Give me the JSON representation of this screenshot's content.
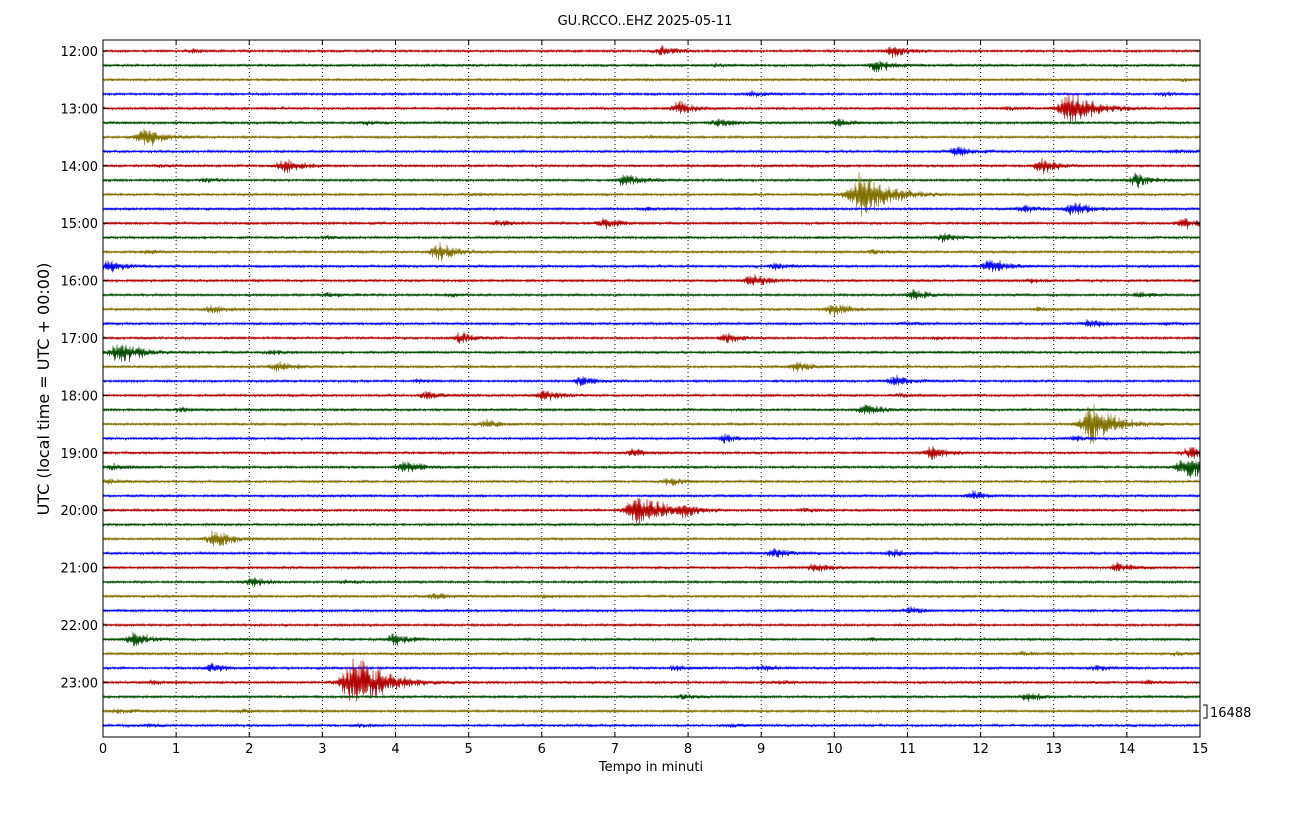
{
  "chart_data": {
    "type": "line",
    "title": "GU.RCCO..EHZ 2025-05-11",
    "xlabel": "Tempo in minuti",
    "ylabel": "UTC (local time = UTC + 00:00)",
    "xlim": [
      0,
      15
    ],
    "x_ticks": [
      "0",
      "1",
      "2",
      "3",
      "4",
      "5",
      "6",
      "7",
      "8",
      "9",
      "10",
      "11",
      "12",
      "13",
      "14",
      "15"
    ],
    "y_ticks": [
      "12:00",
      "13:00",
      "14:00",
      "15:00",
      "16:00",
      "17:00",
      "18:00",
      "19:00",
      "20:00",
      "21:00",
      "22:00",
      "23:00"
    ],
    "trace_interval_minutes": 15,
    "first_trace_utc": "12:00",
    "trace_count": 48,
    "color_cycle": [
      "#b30000",
      "#004d00",
      "#807000",
      "#0000ff"
    ],
    "grid": "vertical dotted at each minute",
    "scale_label": "16488",
    "events": [
      {
        "trace": 0,
        "minute": 7.65,
        "amp": 0.35
      },
      {
        "trace": 0,
        "minute": 10.8,
        "amp": 0.4
      },
      {
        "trace": 0,
        "minute": 1.25,
        "amp": 0.12
      },
      {
        "trace": 1,
        "minute": 10.6,
        "amp": 0.45
      },
      {
        "trace": 1,
        "minute": 8.4,
        "amp": 0.1
      },
      {
        "trace": 2,
        "minute": 14.8,
        "amp": 0.1
      },
      {
        "trace": 3,
        "minute": 8.9,
        "amp": 0.2
      },
      {
        "trace": 3,
        "minute": 14.5,
        "amp": 0.12
      },
      {
        "trace": 4,
        "minute": 7.9,
        "amp": 0.45
      },
      {
        "trace": 4,
        "minute": 13.25,
        "amp": 1.2
      },
      {
        "trace": 4,
        "minute": 12.4,
        "amp": 0.12
      },
      {
        "trace": 5,
        "minute": 8.45,
        "amp": 0.35
      },
      {
        "trace": 5,
        "minute": 10.05,
        "amp": 0.3
      },
      {
        "trace": 5,
        "minute": 3.6,
        "amp": 0.15
      },
      {
        "trace": 6,
        "minute": 0.6,
        "amp": 0.7
      },
      {
        "trace": 6,
        "minute": 7.5,
        "amp": 0.1
      },
      {
        "trace": 7,
        "minute": 11.7,
        "amp": 0.4
      },
      {
        "trace": 7,
        "minute": 14.7,
        "amp": 0.12
      },
      {
        "trace": 8,
        "minute": 2.5,
        "amp": 0.5
      },
      {
        "trace": 8,
        "minute": 12.85,
        "amp": 0.5
      },
      {
        "trace": 8,
        "minute": 0.8,
        "amp": 0.08
      },
      {
        "trace": 9,
        "minute": 7.15,
        "amp": 0.45
      },
      {
        "trace": 9,
        "minute": 14.15,
        "amp": 0.45
      },
      {
        "trace": 9,
        "minute": 1.4,
        "amp": 0.15
      },
      {
        "trace": 10,
        "minute": 10.4,
        "amp": 1.55
      },
      {
        "trace": 10,
        "minute": 5.1,
        "amp": 0.1
      },
      {
        "trace": 11,
        "minute": 12.6,
        "amp": 0.3
      },
      {
        "trace": 11,
        "minute": 13.3,
        "amp": 0.5
      },
      {
        "trace": 11,
        "minute": 7.4,
        "amp": 0.12
      },
      {
        "trace": 12,
        "minute": 5.45,
        "amp": 0.25
      },
      {
        "trace": 12,
        "minute": 6.9,
        "amp": 0.4
      },
      {
        "trace": 12,
        "minute": 14.8,
        "amp": 0.4
      },
      {
        "trace": 13,
        "minute": 11.5,
        "amp": 0.3
      },
      {
        "trace": 13,
        "minute": 3.1,
        "amp": 0.12
      },
      {
        "trace": 14,
        "minute": 4.6,
        "amp": 0.65
      },
      {
        "trace": 14,
        "minute": 0.65,
        "amp": 0.15
      },
      {
        "trace": 14,
        "minute": 10.55,
        "amp": 0.15
      },
      {
        "trace": 15,
        "minute": 0.1,
        "amp": 0.45
      },
      {
        "trace": 15,
        "minute": 9.2,
        "amp": 0.25
      },
      {
        "trace": 15,
        "minute": 12.15,
        "amp": 0.55
      },
      {
        "trace": 16,
        "minute": 8.9,
        "amp": 0.45
      },
      {
        "trace": 16,
        "minute": 12.7,
        "amp": 0.15
      },
      {
        "trace": 17,
        "minute": 11.1,
        "amp": 0.35
      },
      {
        "trace": 17,
        "minute": 14.2,
        "amp": 0.25
      },
      {
        "trace": 17,
        "minute": 3.1,
        "amp": 0.15
      },
      {
        "trace": 17,
        "minute": 4.8,
        "amp": 0.12
      },
      {
        "trace": 18,
        "minute": 1.5,
        "amp": 0.3
      },
      {
        "trace": 18,
        "minute": 10.0,
        "amp": 0.45
      },
      {
        "trace": 18,
        "minute": 12.8,
        "amp": 0.15
      },
      {
        "trace": 19,
        "minute": 13.5,
        "amp": 0.3
      },
      {
        "trace": 19,
        "minute": 11.0,
        "amp": 0.12
      },
      {
        "trace": 19,
        "minute": 14.55,
        "amp": 0.12
      },
      {
        "trace": 20,
        "minute": 4.9,
        "amp": 0.4
      },
      {
        "trace": 20,
        "minute": 8.55,
        "amp": 0.35
      },
      {
        "trace": 20,
        "minute": 11.4,
        "amp": 0.1
      },
      {
        "trace": 21,
        "minute": 0.25,
        "amp": 0.85
      },
      {
        "trace": 21,
        "minute": 2.3,
        "amp": 0.2
      },
      {
        "trace": 22,
        "minute": 2.4,
        "amp": 0.35
      },
      {
        "trace": 22,
        "minute": 9.5,
        "amp": 0.35
      },
      {
        "trace": 23,
        "minute": 6.55,
        "amp": 0.35
      },
      {
        "trace": 23,
        "minute": 10.85,
        "amp": 0.4
      },
      {
        "trace": 23,
        "minute": 4.3,
        "amp": 0.12
      },
      {
        "trace": 24,
        "minute": 4.45,
        "amp": 0.3
      },
      {
        "trace": 24,
        "minute": 6.05,
        "amp": 0.4
      },
      {
        "trace": 24,
        "minute": 10.9,
        "amp": 0.15
      },
      {
        "trace": 25,
        "minute": 10.45,
        "amp": 0.4
      },
      {
        "trace": 25,
        "minute": 1.1,
        "amp": 0.15
      },
      {
        "trace": 26,
        "minute": 5.25,
        "amp": 0.3
      },
      {
        "trace": 26,
        "minute": 13.55,
        "amp": 1.25
      },
      {
        "trace": 27,
        "minute": 8.5,
        "amp": 0.3
      },
      {
        "trace": 27,
        "minute": 13.3,
        "amp": 0.2
      },
      {
        "trace": 28,
        "minute": 7.25,
        "amp": 0.3
      },
      {
        "trace": 28,
        "minute": 11.35,
        "amp": 0.45
      },
      {
        "trace": 28,
        "minute": 14.9,
        "amp": 0.5
      },
      {
        "trace": 29,
        "minute": 4.15,
        "amp": 0.45
      },
      {
        "trace": 29,
        "minute": 14.85,
        "amp": 0.9
      },
      {
        "trace": 29,
        "minute": 0.15,
        "amp": 0.2
      },
      {
        "trace": 30,
        "minute": 7.75,
        "amp": 0.3
      },
      {
        "trace": 30,
        "minute": 0.1,
        "amp": 0.15
      },
      {
        "trace": 31,
        "minute": 11.9,
        "amp": 0.3
      },
      {
        "trace": 32,
        "minute": 7.35,
        "amp": 1.2
      },
      {
        "trace": 32,
        "minute": 7.95,
        "amp": 0.35
      },
      {
        "trace": 32,
        "minute": 9.6,
        "amp": 0.15
      },
      {
        "trace": 34,
        "minute": 1.55,
        "amp": 0.6
      },
      {
        "trace": 35,
        "minute": 9.2,
        "amp": 0.35
      },
      {
        "trace": 35,
        "minute": 10.8,
        "amp": 0.25
      },
      {
        "trace": 36,
        "minute": 9.75,
        "amp": 0.35
      },
      {
        "trace": 36,
        "minute": 13.9,
        "amp": 0.35
      },
      {
        "trace": 37,
        "minute": 2.05,
        "amp": 0.35
      },
      {
        "trace": 37,
        "minute": 3.3,
        "amp": 0.1
      },
      {
        "trace": 38,
        "minute": 4.55,
        "amp": 0.25
      },
      {
        "trace": 38,
        "minute": 6.05,
        "amp": 0.12
      },
      {
        "trace": 39,
        "minute": 11.05,
        "amp": 0.25
      },
      {
        "trace": 41,
        "minute": 0.45,
        "amp": 0.5
      },
      {
        "trace": 41,
        "minute": 4.0,
        "amp": 0.4
      },
      {
        "trace": 41,
        "minute": 10.5,
        "amp": 0.12
      },
      {
        "trace": 42,
        "minute": 12.6,
        "amp": 0.15
      },
      {
        "trace": 42,
        "minute": 14.7,
        "amp": 0.15
      },
      {
        "trace": 43,
        "minute": 1.5,
        "amp": 0.3
      },
      {
        "trace": 43,
        "minute": 7.85,
        "amp": 0.2
      },
      {
        "trace": 43,
        "minute": 9.05,
        "amp": 0.2
      },
      {
        "trace": 43,
        "minute": 13.6,
        "amp": 0.15
      },
      {
        "trace": 44,
        "minute": 3.5,
        "amp": 1.75
      },
      {
        "trace": 44,
        "minute": 0.7,
        "amp": 0.15
      },
      {
        "trace": 44,
        "minute": 9.3,
        "amp": 0.15
      },
      {
        "trace": 44,
        "minute": 14.3,
        "amp": 0.15
      },
      {
        "trace": 45,
        "minute": 7.95,
        "amp": 0.2
      },
      {
        "trace": 45,
        "minute": 12.65,
        "amp": 0.3
      },
      {
        "trace": 46,
        "minute": 0.2,
        "amp": 0.2
      },
      {
        "trace": 46,
        "minute": 1.9,
        "amp": 0.12
      },
      {
        "trace": 47,
        "minute": 0.65,
        "amp": 0.1
      },
      {
        "trace": 47,
        "minute": 3.5,
        "amp": 0.1
      },
      {
        "trace": 47,
        "minute": 8.6,
        "amp": 0.12
      }
    ]
  }
}
